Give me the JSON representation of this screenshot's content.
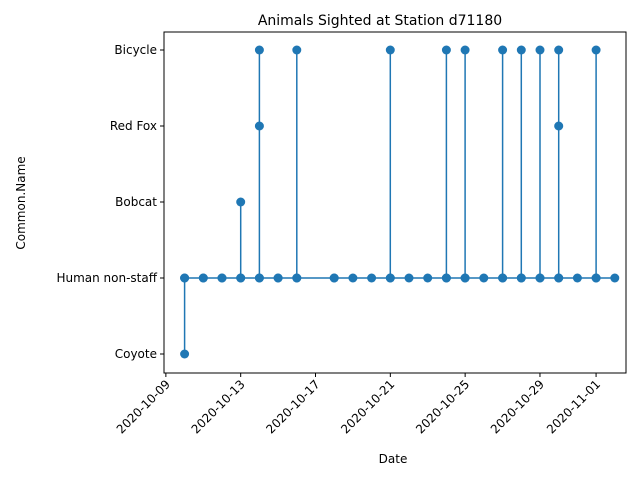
{
  "chart_data": {
    "type": "line",
    "title": "Animals Sighted at Station d71180",
    "xlabel": "Date",
    "ylabel": "Common.Name",
    "categories": [
      "Coyote",
      "Human non-staff",
      "Bobcat",
      "Red Fox",
      "Bicycle"
    ],
    "x_ticks": [
      "2020-10-09",
      "2020-10-13",
      "2020-10-17",
      "2020-10-21",
      "2020-10-25",
      "2020-10-29",
      "2020-11-01"
    ],
    "xlim": [
      "2020-10-08.9",
      "2020-11-02.6"
    ],
    "grid": false,
    "color": "#1f77b4",
    "series": [
      {
        "x": [
          "2020-10-10",
          "2020-10-10",
          "2020-10-10",
          "2020-10-11",
          "2020-10-11",
          "2020-10-12",
          "2020-10-12",
          "2020-10-13",
          "2020-10-13",
          "2020-10-13",
          "2020-10-14",
          "2020-10-14",
          "2020-10-14",
          "2020-10-14",
          "2020-10-15",
          "2020-10-15",
          "2020-10-16",
          "2020-10-16",
          "2020-10-16",
          "2020-10-18",
          "2020-10-18",
          "2020-10-19",
          "2020-10-20",
          "2020-10-21",
          "2020-10-21",
          "2020-10-21",
          "2020-10-22",
          "2020-10-23",
          "2020-10-24",
          "2020-10-24",
          "2020-10-24",
          "2020-10-25",
          "2020-10-25",
          "2020-10-25",
          "2020-10-26",
          "2020-10-27",
          "2020-10-27",
          "2020-10-27",
          "2020-10-28",
          "2020-10-28",
          "2020-10-28",
          "2020-10-29",
          "2020-10-29",
          "2020-10-29",
          "2020-10-30",
          "2020-10-30",
          "2020-10-30",
          "2020-10-30",
          "2020-10-31",
          "2020-11-01",
          "2020-11-01",
          "2020-11-01",
          "2020-11-02"
        ],
        "y": [
          "Coyote",
          "Human non-staff",
          "Human non-staff",
          "Human non-staff",
          "Human non-staff",
          "Human non-staff",
          "Human non-staff",
          "Human non-staff",
          "Bobcat",
          "Human non-staff",
          "Human non-staff",
          "Bicycle",
          "Red Fox",
          "Human non-staff",
          "Human non-staff",
          "Human non-staff",
          "Human non-staff",
          "Bicycle",
          "Human non-staff",
          "Human non-staff",
          "Human non-staff",
          "Human non-staff",
          "Human non-staff",
          "Human non-staff",
          "Bicycle",
          "Human non-staff",
          "Human non-staff",
          "Human non-staff",
          "Human non-staff",
          "Bicycle",
          "Human non-staff",
          "Human non-staff",
          "Bicycle",
          "Human non-staff",
          "Human non-staff",
          "Human non-staff",
          "Bicycle",
          "Human non-staff",
          "Human non-staff",
          "Bicycle",
          "Human non-staff",
          "Human non-staff",
          "Bicycle",
          "Human non-staff",
          "Human non-staff",
          "Bicycle",
          "Red Fox",
          "Human non-staff",
          "Human non-staff",
          "Human non-staff",
          "Bicycle",
          "Human non-staff",
          "Human non-staff"
        ]
      }
    ]
  }
}
